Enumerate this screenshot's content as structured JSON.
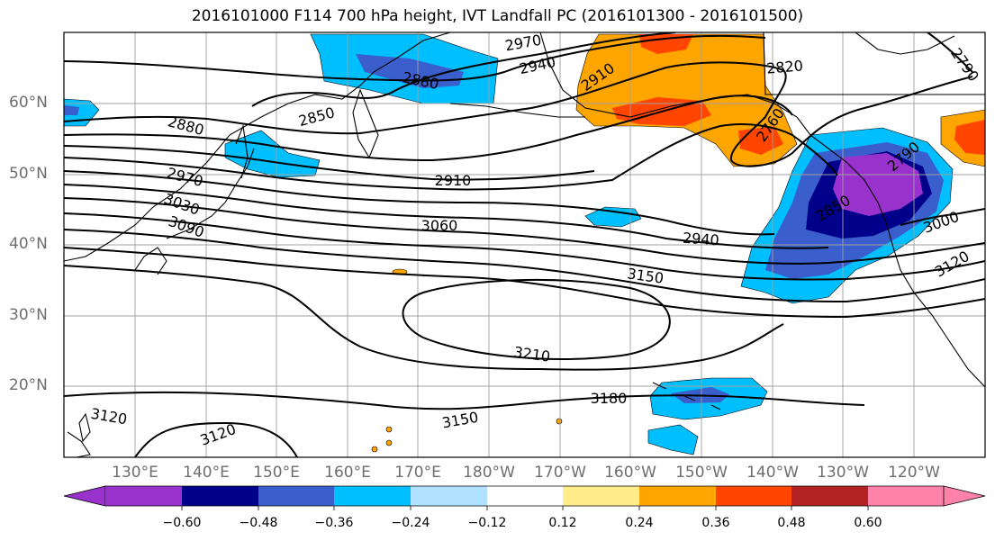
{
  "title": "2016101000 F114 700 hPa height, IVT Landfall PC (2016101300 - 2016101500)",
  "lat_labels": [
    "60°N",
    "50°N",
    "40°N",
    "30°N",
    "20°N"
  ],
  "lon_labels": [
    "130°E",
    "140°E",
    "150°E",
    "160°E",
    "170°E",
    "180°W",
    "170°W",
    "160°W",
    "150°W",
    "140°W",
    "130°W",
    "120°W"
  ],
  "colorbar": {
    "colors": [
      "#9932cc",
      "#00008b",
      "#3a5fcd",
      "#00bfff",
      "#b0e2ff",
      "#ffffff",
      "#ffec8b",
      "#ffa500",
      "#ff4500",
      "#b22222",
      "#ff82ab"
    ],
    "ticks": [
      "−0.60",
      "−0.48",
      "−0.36",
      "−0.24",
      "−0.12",
      "0.12",
      "0.24",
      "0.36",
      "0.48",
      "0.60"
    ]
  },
  "contour_labels": [
    "2970",
    "2940",
    "2880",
    "2910",
    "2820",
    "2850",
    "2760",
    "2790",
    "2880",
    "2970",
    "3030",
    "3090",
    "2910",
    "3060",
    "2940",
    "3150",
    "3000",
    "3120",
    "3210",
    "3180",
    "3150",
    "3120",
    "3120",
    "2850",
    "2790"
  ],
  "chart_data": {
    "type": "map",
    "field": "700 hPa height contours (m) with IVT Landfall PC shading",
    "contour_levels": [
      2760,
      2790,
      2820,
      2850,
      2880,
      2910,
      2940,
      2970,
      3000,
      3030,
      3060,
      3090,
      3120,
      3150,
      3180,
      3210
    ],
    "shading_levels": [
      -0.6,
      -0.48,
      -0.36,
      -0.24,
      -0.12,
      0.12,
      0.24,
      0.36,
      0.48,
      0.6
    ],
    "lon_range": [
      "123°E",
      "116°W"
    ],
    "lat_range": [
      "10°N",
      "70°N"
    ],
    "grid": true,
    "colorbar_placement": "bottom"
  }
}
